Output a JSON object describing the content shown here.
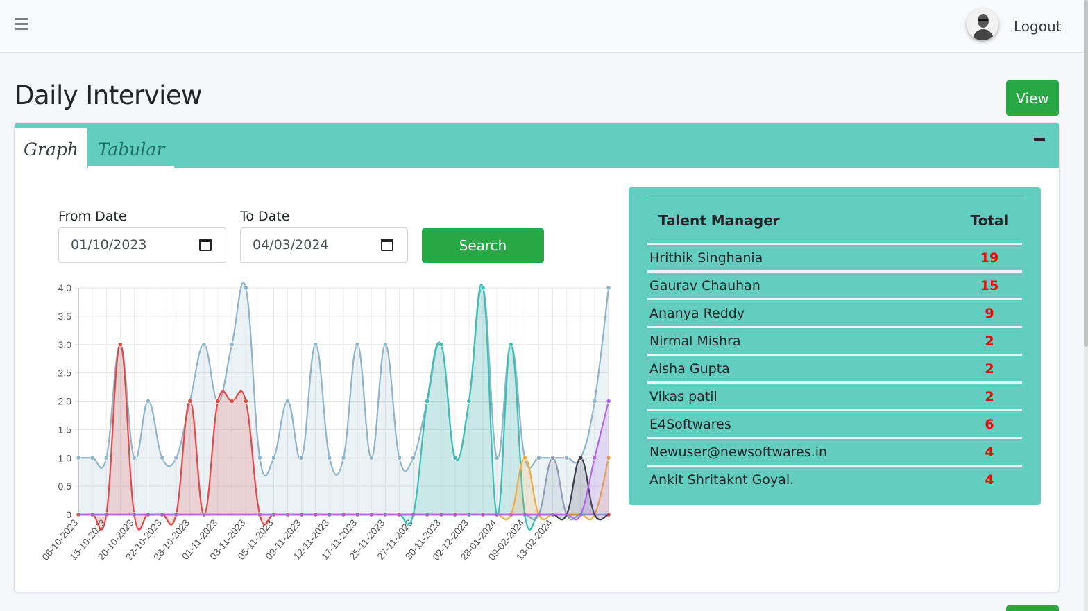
{
  "navbar": {
    "logout_label": "Logout"
  },
  "page": {
    "title": "Daily Interview",
    "view_button": "View"
  },
  "tabs": [
    {
      "label": "Graph",
      "active": true
    },
    {
      "label": "Tabular",
      "active": false
    }
  ],
  "filters": {
    "from_label": "From Date",
    "from_value": "01/10/2023",
    "to_label": "To Date",
    "to_value": "04/03/2024",
    "search_label": "Search"
  },
  "talent_table": {
    "headers": [
      "Talent Manager",
      "Total"
    ],
    "rows": [
      {
        "name": "Hrithik Singhania",
        "total": "19"
      },
      {
        "name": "Gaurav Chauhan",
        "total": "15"
      },
      {
        "name": "Ananya Reddy",
        "total": "9"
      },
      {
        "name": "Nirmal Mishra",
        "total": "2"
      },
      {
        "name": "Aisha Gupta",
        "total": "2"
      },
      {
        "name": "Vikas patil",
        "total": "2"
      },
      {
        "name": "E4Softwares",
        "total": "6"
      },
      {
        "name": "Newuser@newsoftwares.in",
        "total": "4"
      },
      {
        "name": "Ankit Shritaknt Goyal.",
        "total": "4"
      }
    ]
  },
  "colors": {
    "accent": "#63cdbf",
    "button": "#28a745",
    "total_text": "#ff0000"
  },
  "chart_data": {
    "type": "area",
    "ylim": [
      0,
      4
    ],
    "y_ticks": [
      "0",
      "0.5",
      "1.0",
      "1.5",
      "2.0",
      "2.5",
      "3.0",
      "3.5",
      "4.0"
    ],
    "x_tick_labels": [
      "06-10-2023",
      "15-10-2023",
      "20-10-2023",
      "22-10-2023",
      "28-10-2023",
      "01-11-2023",
      "03-11-2023",
      "05-11-2023",
      "09-11-2023",
      "12-11-2023",
      "17-11-2023",
      "25-11-2023",
      "27-11-2023",
      "30-11-2023",
      "02-12-2023",
      "28-01-2024",
      "09-02-2024",
      "13-02-2024"
    ],
    "grid": true,
    "series": [
      {
        "color": "#8fb5c8",
        "values": [
          1,
          1,
          1,
          3,
          1,
          2,
          1,
          1,
          2,
          3,
          2,
          3,
          4,
          1,
          1,
          2,
          1,
          3,
          1,
          1,
          3,
          1,
          3,
          1,
          1,
          2,
          3,
          1,
          2,
          4,
          1,
          3,
          1,
          1,
          1,
          1,
          1,
          2,
          4
        ]
      },
      {
        "color": "#e84545",
        "values": [
          0,
          0,
          0,
          3,
          0,
          0,
          0,
          0,
          2,
          0,
          2,
          2,
          2,
          0,
          0,
          0,
          0,
          0,
          0,
          0,
          0,
          0,
          0,
          0,
          0,
          0,
          0,
          0,
          0,
          0,
          0,
          0,
          0,
          0,
          0,
          0,
          0,
          0,
          0
        ]
      },
      {
        "color": "#3bbfb2",
        "values": [
          0,
          0,
          0,
          0,
          0,
          0,
          0,
          0,
          0,
          0,
          0,
          0,
          0,
          0,
          0,
          0,
          0,
          0,
          0,
          0,
          0,
          0,
          0,
          0,
          0,
          2,
          3,
          1,
          2,
          4,
          0,
          3,
          0,
          0,
          0,
          0,
          0,
          0,
          0
        ]
      },
      {
        "color": "#f3a93c",
        "values": [
          0,
          0,
          0,
          0,
          0,
          0,
          0,
          0,
          0,
          0,
          0,
          0,
          0,
          0,
          0,
          0,
          0,
          0,
          0,
          0,
          0,
          0,
          0,
          0,
          0,
          0,
          0,
          0,
          0,
          0,
          0,
          0,
          1,
          0,
          0,
          0,
          0,
          0,
          1
        ]
      },
      {
        "color": "#8f9bb5",
        "values": [
          0,
          0,
          0,
          0,
          0,
          0,
          0,
          0,
          0,
          0,
          0,
          0,
          0,
          0,
          0,
          0,
          0,
          0,
          0,
          0,
          0,
          0,
          0,
          0,
          0,
          0,
          0,
          0,
          0,
          0,
          0,
          0,
          0,
          0,
          1,
          0,
          0,
          0,
          0
        ]
      },
      {
        "color": "#3a3a4a",
        "values": [
          0,
          0,
          0,
          0,
          0,
          0,
          0,
          0,
          0,
          0,
          0,
          0,
          0,
          0,
          0,
          0,
          0,
          0,
          0,
          0,
          0,
          0,
          0,
          0,
          0,
          0,
          0,
          0,
          0,
          0,
          0,
          0,
          0,
          0,
          0,
          0,
          1,
          0,
          0
        ]
      },
      {
        "color": "#b266f0",
        "values": [
          0,
          0,
          0,
          0,
          0,
          0,
          0,
          0,
          0,
          0,
          0,
          0,
          0,
          0,
          0,
          0,
          0,
          0,
          0,
          0,
          0,
          0,
          0,
          0,
          0,
          0,
          0,
          0,
          0,
          0,
          0,
          0,
          0,
          0,
          0,
          0,
          0,
          1,
          2
        ]
      }
    ]
  }
}
